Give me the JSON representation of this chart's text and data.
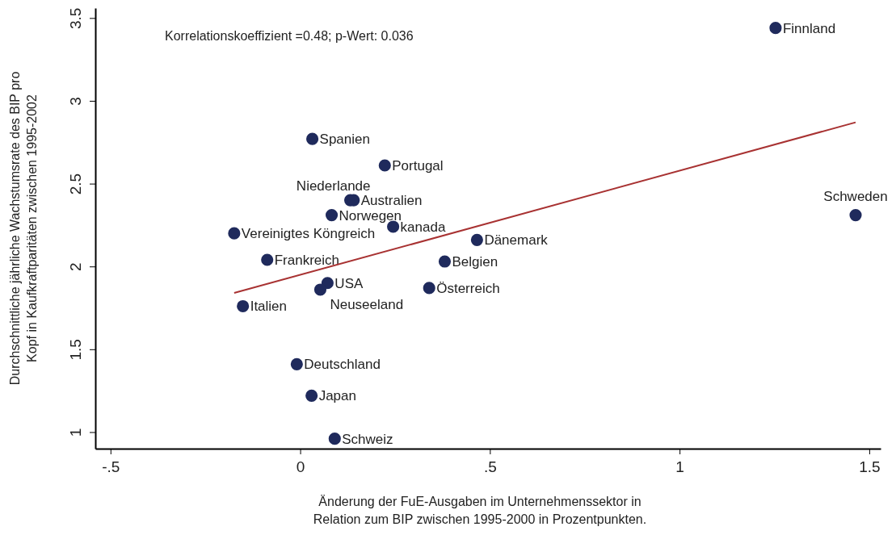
{
  "chart_data": {
    "type": "scatter",
    "xlabel": "Änderung der FuE-Ausgaben im Unternehmenssektor in Relation zum BIP zwischen 1995-2000 in Prozentpunkten.",
    "ylabel": "Durchschnittliche jährliche Wachstumsrate des BIP pro Kopf in Kaufkraftparitäten zwischen 1995-2002",
    "annotations": [
      "Korrelationskoeffizient =0.48; p-Wert: 0.036"
    ],
    "xlim": [
      -0.54,
      1.53
    ],
    "xticks": [
      {
        "value": -0.5,
        "label": "-.5"
      },
      0,
      {
        "value": 0.5,
        "label": ".5"
      },
      1,
      1.5
    ],
    "ylim": [
      0.9,
      3.56
    ],
    "yticks": [
      1,
      1.5,
      2,
      2.5,
      3,
      3.5
    ],
    "grid": false,
    "legend": false,
    "marker": "circle",
    "series": [
      {
        "name": "Finnland",
        "color": "#1f2a5c",
        "x": [
          1.253
        ],
        "values": [
          3.44
        ]
      },
      {
        "name": "Schweden",
        "color": "#1f2a5c",
        "x": [
          1.464
        ],
        "values": [
          2.31
        ]
      },
      {
        "name": "Spanien",
        "color": "#1f2a5c",
        "x": [
          0.032
        ],
        "values": [
          2.77
        ]
      },
      {
        "name": "Portugal",
        "color": "#1f2a5c",
        "x": [
          0.223
        ],
        "values": [
          2.61
        ]
      },
      {
        "name": "Niederlande",
        "color": "#1f2a5c",
        "x": [
          0.132
        ],
        "values": [
          2.4
        ]
      },
      {
        "name": "Australien",
        "color": "#1f2a5c",
        "x": [
          0.141
        ],
        "values": [
          2.4
        ]
      },
      {
        "name": "Norwegen",
        "color": "#1f2a5c",
        "x": [
          0.083
        ],
        "values": [
          2.31
        ]
      },
      {
        "name": "kanada",
        "color": "#1f2a5c",
        "x": [
          0.245
        ],
        "values": [
          2.24
        ]
      },
      {
        "name": "Vereinigtes Köngreich",
        "color": "#1f2a5c",
        "x": [
          -0.174
        ],
        "values": [
          2.2
        ]
      },
      {
        "name": "Dänemark",
        "color": "#1f2a5c",
        "x": [
          0.466
        ],
        "values": [
          2.16
        ]
      },
      {
        "name": "Frankreich",
        "color": "#1f2a5c",
        "x": [
          -0.087
        ],
        "values": [
          2.04
        ]
      },
      {
        "name": "Belgien",
        "color": "#1f2a5c",
        "x": [
          0.381
        ],
        "values": [
          2.03
        ]
      },
      {
        "name": "USA",
        "color": "#1f2a5c",
        "x": [
          0.072
        ],
        "values": [
          1.9
        ]
      },
      {
        "name": "Neuseeland",
        "color": "#1f2a5c",
        "x": [
          0.053
        ],
        "values": [
          1.86
        ]
      },
      {
        "name": "Österreich",
        "color": "#1f2a5c",
        "x": [
          0.34
        ],
        "values": [
          1.87
        ]
      },
      {
        "name": "Italien",
        "color": "#1f2a5c",
        "x": [
          -0.151
        ],
        "values": [
          1.76
        ]
      },
      {
        "name": "Deutschland",
        "color": "#1f2a5c",
        "x": [
          -0.009
        ],
        "values": [
          1.41
        ]
      },
      {
        "name": "Japan",
        "color": "#1f2a5c",
        "x": [
          0.03
        ],
        "values": [
          1.22
        ]
      },
      {
        "name": "Schweiz",
        "color": "#1f2a5c",
        "x": [
          0.091
        ],
        "values": [
          0.96
        ]
      },
      {
        "type": "line",
        "color": "#a83232",
        "x": [
          -0.174,
          1.464
        ],
        "values": [
          1.84,
          2.87
        ],
        "line_style": "solid",
        "marker": "none"
      }
    ]
  }
}
